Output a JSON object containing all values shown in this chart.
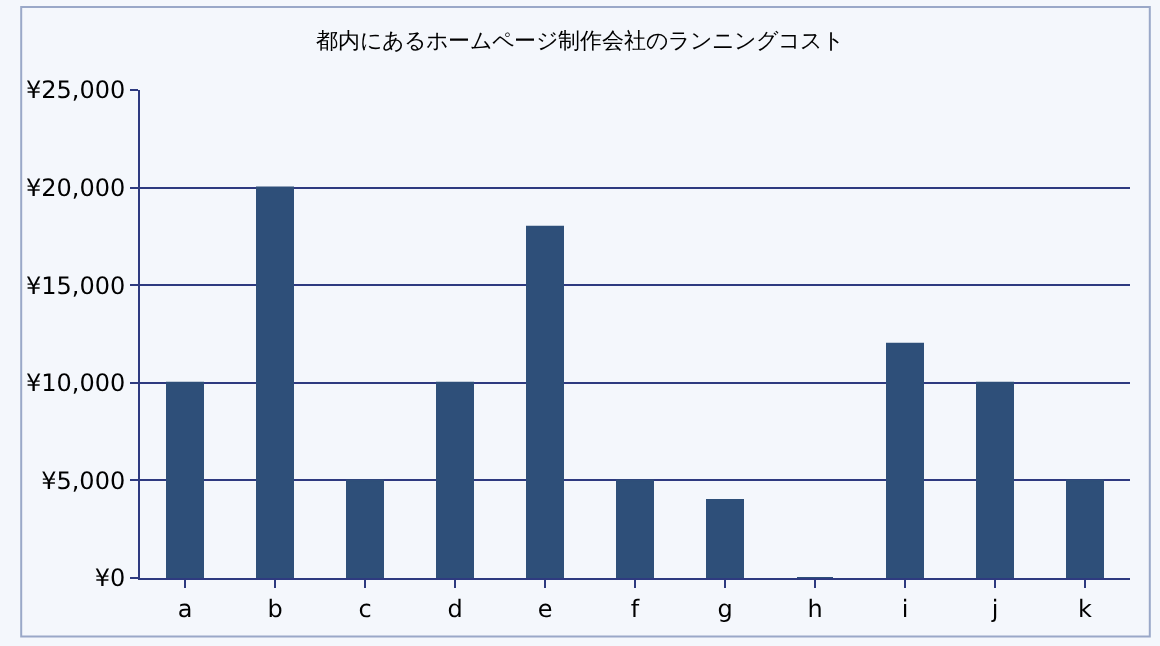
{
  "chart_data": {
    "type": "bar",
    "title": "都内にあるホームページ制作会社のランニングコスト",
    "categories": [
      "a",
      "b",
      "c",
      "d",
      "e",
      "f",
      "g",
      "h",
      "i",
      "j",
      "k"
    ],
    "values": [
      10000,
      20000,
      5000,
      10000,
      18000,
      5000,
      4000,
      0,
      12000,
      10000,
      5000
    ],
    "color": "#2e4f79",
    "ylim": [
      0,
      25000
    ],
    "yticks": [
      {
        "value": 0,
        "label": "¥0"
      },
      {
        "value": 5000,
        "label": "¥5,000"
      },
      {
        "value": 10000,
        "label": "¥10,000"
      },
      {
        "value": 15000,
        "label": "¥15,000"
      },
      {
        "value": 20000,
        "label": "¥20,000"
      },
      {
        "value": 25000,
        "label": "¥25,000"
      }
    ],
    "grid": "y"
  }
}
